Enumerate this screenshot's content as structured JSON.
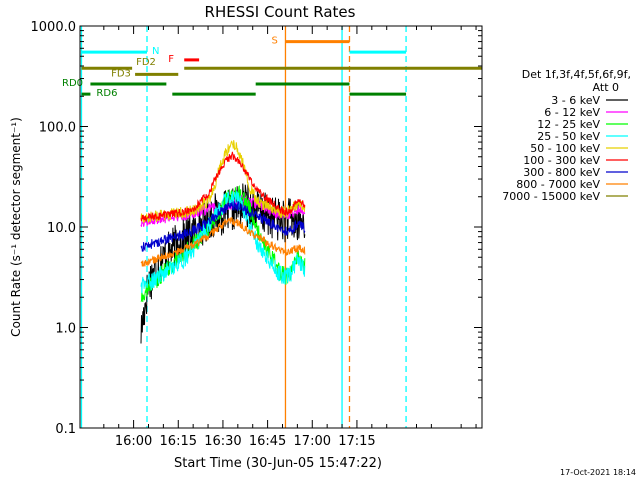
{
  "chart_data": {
    "type": "line",
    "title": "RHESSI Count Rates",
    "xlabel": "Start Time (30-Jun-05 15:47:22)",
    "ylabel": "Count Rate (s⁻¹ detector segment⁻¹)",
    "yscale": "log",
    "ylim": [
      0.1,
      1000
    ],
    "xlim_min": [
      -5,
      130
    ],
    "xticks": [
      {
        "label": "16:00",
        "min": 13
      },
      {
        "label": "16:15",
        "min": 28
      },
      {
        "label": "16:30",
        "min": 43
      },
      {
        "label": "16:45",
        "min": 58
      },
      {
        "label": "17:00",
        "min": 73
      },
      {
        "label": "17:15",
        "min": 88
      }
    ],
    "yticks": [
      "0.1",
      "1.0",
      "10.0",
      "100.0",
      "1000.0"
    ],
    "legend": {
      "header": [
        "Det 1f,3f,4f,5f,6f,9f,",
        "Att 0"
      ],
      "placement": "right"
    },
    "series": [
      {
        "name": "3 - 6 keV",
        "color": "#000000",
        "t": [
          15.5,
          18,
          22,
          26,
          30,
          34,
          38,
          40,
          42,
          44,
          46,
          48,
          50,
          52,
          54,
          56,
          58,
          60,
          62,
          64,
          66,
          68,
          70.5
        ],
        "y": [
          0.9,
          2.8,
          4.5,
          6,
          7.5,
          9.5,
          12,
          13,
          13.5,
          14,
          14.5,
          16,
          17,
          16,
          15,
          14,
          13,
          12.5,
          12,
          11.5,
          12,
          10.5,
          11.5
        ]
      },
      {
        "name": "6 - 12 keV",
        "color": "#ff00ff",
        "t": [
          15.5,
          18,
          22,
          26,
          30,
          34,
          38,
          40,
          42,
          44,
          46,
          48,
          50,
          52,
          54,
          56,
          58,
          60,
          62,
          64,
          66,
          68,
          70.5
        ],
        "y": [
          11,
          11.5,
          12,
          12.5,
          13,
          14,
          15,
          15.5,
          15,
          16,
          17,
          18,
          19,
          18,
          17,
          16,
          15,
          14,
          13,
          13,
          13.5,
          15,
          15
        ]
      },
      {
        "name": "12 - 25 keV",
        "color": "#00ff00",
        "t": [
          15.5,
          18,
          22,
          26,
          30,
          34,
          38,
          40,
          42,
          44,
          46,
          48,
          50,
          52,
          54,
          56,
          58,
          60,
          62,
          64,
          66,
          68,
          70.5
        ],
        "y": [
          1.9,
          2.5,
          3.3,
          4.3,
          5.5,
          7,
          9.5,
          12,
          14,
          18,
          21,
          22,
          20,
          15,
          10,
          7.2,
          5.8,
          4.6,
          3.6,
          3.2,
          3.4,
          5.2,
          4.2
        ]
      },
      {
        "name": "25 - 50 keV",
        "color": "#00ffff",
        "t": [
          15.5,
          18,
          22,
          26,
          30,
          34,
          38,
          40,
          42,
          44,
          46,
          48,
          50,
          52,
          54,
          56,
          58,
          60,
          62,
          64,
          66,
          68,
          70.5
        ],
        "y": [
          2.6,
          2.8,
          3.3,
          4,
          4.8,
          6.5,
          10,
          13,
          15,
          18,
          20,
          19,
          15,
          10,
          7.5,
          6,
          5,
          4.2,
          3.4,
          3.2,
          3.5,
          4.5,
          3.8
        ]
      },
      {
        "name": "50 - 100 keV",
        "color": "#e8d000",
        "t": [
          15.5,
          18,
          22,
          26,
          30,
          34,
          38,
          40,
          42,
          44,
          46,
          48,
          50,
          52,
          54,
          56,
          58,
          60,
          62,
          64,
          66,
          68,
          70.5
        ],
        "y": [
          12,
          12.5,
          13,
          13.5,
          14,
          15,
          18,
          25,
          40,
          55,
          70,
          60,
          40,
          25,
          19,
          17,
          16,
          15,
          14,
          14,
          15,
          17,
          16
        ]
      },
      {
        "name": "100 - 300 keV",
        "color": "#ff0000",
        "t": [
          15.5,
          18,
          22,
          26,
          30,
          34,
          38,
          40,
          42,
          44,
          46,
          48,
          50,
          52,
          54,
          56,
          58,
          60,
          62,
          64,
          66,
          68,
          70.5
        ],
        "y": [
          12,
          12.5,
          13,
          13.5,
          14,
          16,
          21,
          28,
          36,
          45,
          52,
          47,
          38,
          30,
          25,
          21,
          19,
          17,
          15,
          14,
          15,
          18,
          17
        ]
      },
      {
        "name": "300 - 800 keV",
        "color": "#0000cc",
        "t": [
          15.5,
          18,
          22,
          26,
          30,
          34,
          38,
          40,
          42,
          44,
          46,
          48,
          50,
          52,
          54,
          56,
          58,
          60,
          62,
          64,
          66,
          68,
          70.5
        ],
        "y": [
          6.2,
          6.6,
          7.2,
          7.8,
          8.5,
          9.5,
          11,
          12.5,
          14,
          15.5,
          16.5,
          16,
          15,
          14,
          13,
          12.2,
          11.5,
          10.5,
          9.5,
          9,
          9.5,
          10.5,
          9.8
        ]
      },
      {
        "name": "800 - 7000 keV",
        "color": "#ff8000",
        "t": [
          15.5,
          18,
          22,
          26,
          30,
          34,
          38,
          40,
          42,
          44,
          46,
          48,
          50,
          52,
          54,
          56,
          58,
          60,
          62,
          64,
          66,
          68,
          70.5
        ],
        "y": [
          4.2,
          4.5,
          4.9,
          5.4,
          6,
          6.8,
          8,
          9,
          10,
          11,
          11.5,
          11,
          10,
          9,
          8.2,
          7.6,
          7,
          6.4,
          5.9,
          5.6,
          5.8,
          6.2,
          5.8
        ]
      },
      {
        "name": "7000 - 15000 keV",
        "color": "#808000",
        "t": [],
        "y": []
      }
    ],
    "vertical_lines": [
      {
        "min": -4.5,
        "color": "#00ffff",
        "style": "solid"
      },
      {
        "min": 17.5,
        "color": "#00ffff",
        "style": "dashed"
      },
      {
        "min": 64,
        "color": "#ff8000",
        "style": "solid"
      },
      {
        "min": 83,
        "color": "#00ffff",
        "style": "solid"
      },
      {
        "min": 85.5,
        "color": "#ff8000",
        "style": "dashed"
      },
      {
        "min": 104.5,
        "color": "#00ffff",
        "style": "dashed"
      }
    ],
    "flags": [
      {
        "label": "N",
        "color": "#00ffff",
        "segments": [
          [
            -4.5,
            17.5
          ],
          [
            85.5,
            104.5
          ]
        ],
        "level": 550
      },
      {
        "label": "S",
        "color": "#ff8000",
        "segments": [
          [
            64,
            85.5
          ]
        ],
        "level": 700
      },
      {
        "label": "F",
        "color": "#ff0000",
        "segments": [
          [
            30,
            35
          ]
        ],
        "level": 460
      },
      {
        "label": "FD2",
        "color": "#808000",
        "segments": [
          [
            -4.5,
            12.5
          ],
          [
            30,
            130
          ]
        ],
        "level": 380
      },
      {
        "label": "FD3",
        "color": "#808000",
        "segments": [
          [
            13.5,
            28
          ]
        ],
        "level": 330
      },
      {
        "label": "RD0",
        "color": "#008000",
        "segments": [
          [
            -1.5,
            24
          ],
          [
            54,
            85.5
          ]
        ],
        "level": 265
      },
      {
        "label": "RD6",
        "color": "#008000",
        "segments": [
          [
            -4.5,
            -1.5
          ],
          [
            26,
            54
          ],
          [
            85.5,
            104.5
          ]
        ],
        "level": 210
      }
    ],
    "grid": false
  },
  "footer": {
    "timestamp": "17-Oct-2021 18:14"
  }
}
